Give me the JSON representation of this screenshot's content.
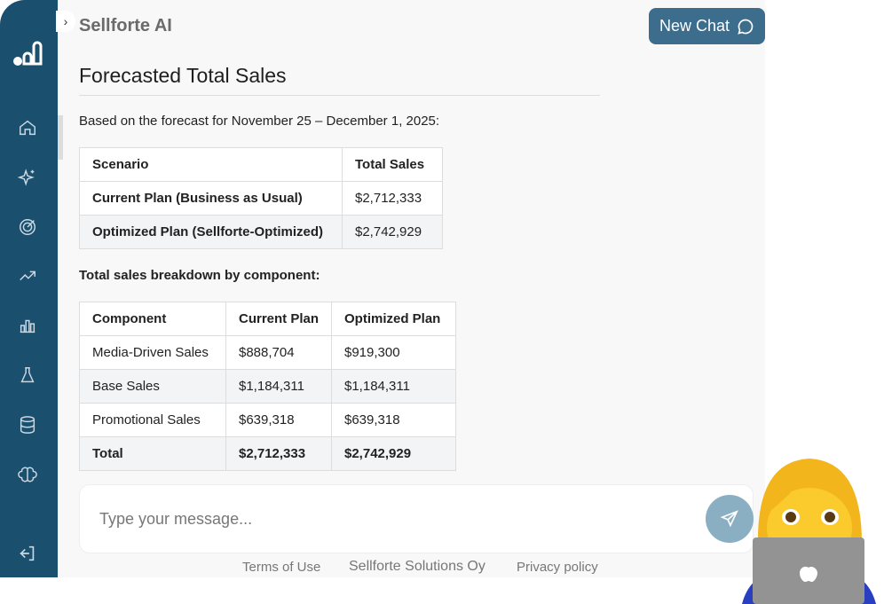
{
  "app": {
    "title": "Sellforte AI",
    "new_chat": "New Chat"
  },
  "sidebar": {
    "items": [
      "home",
      "ai-sparkles",
      "target",
      "trending",
      "bar-chart",
      "flask",
      "database",
      "brain",
      "logout"
    ]
  },
  "content": {
    "heading": "Forecasted Total Sales",
    "intro": "Based on the forecast for November 25 – December 1, 2025:",
    "table1": {
      "headers": [
        "Scenario",
        "Total Sales"
      ],
      "rows": [
        [
          "Current Plan (Business as Usual)",
          "$2,712,333"
        ],
        [
          "Optimized Plan (Sellforte-Optimized)",
          "$2,742,929"
        ]
      ]
    },
    "breakdown_label": "Total sales breakdown by component:",
    "table2": {
      "headers": [
        "Component",
        "Current Plan",
        "Optimized Plan"
      ],
      "rows": [
        [
          "Media-Driven Sales",
          "$888,704",
          "$919,300"
        ],
        [
          "Base Sales",
          "$1,184,311",
          "$1,184,311"
        ],
        [
          "Promotional Sales",
          "$639,318",
          "$639,318"
        ],
        [
          "Total",
          "$2,712,333",
          "$2,742,929"
        ]
      ]
    }
  },
  "input": {
    "placeholder": "Type your message..."
  },
  "footer": {
    "terms": "Terms of Use",
    "company": "Sellforte Solutions Oy",
    "privacy": "Privacy policy"
  }
}
